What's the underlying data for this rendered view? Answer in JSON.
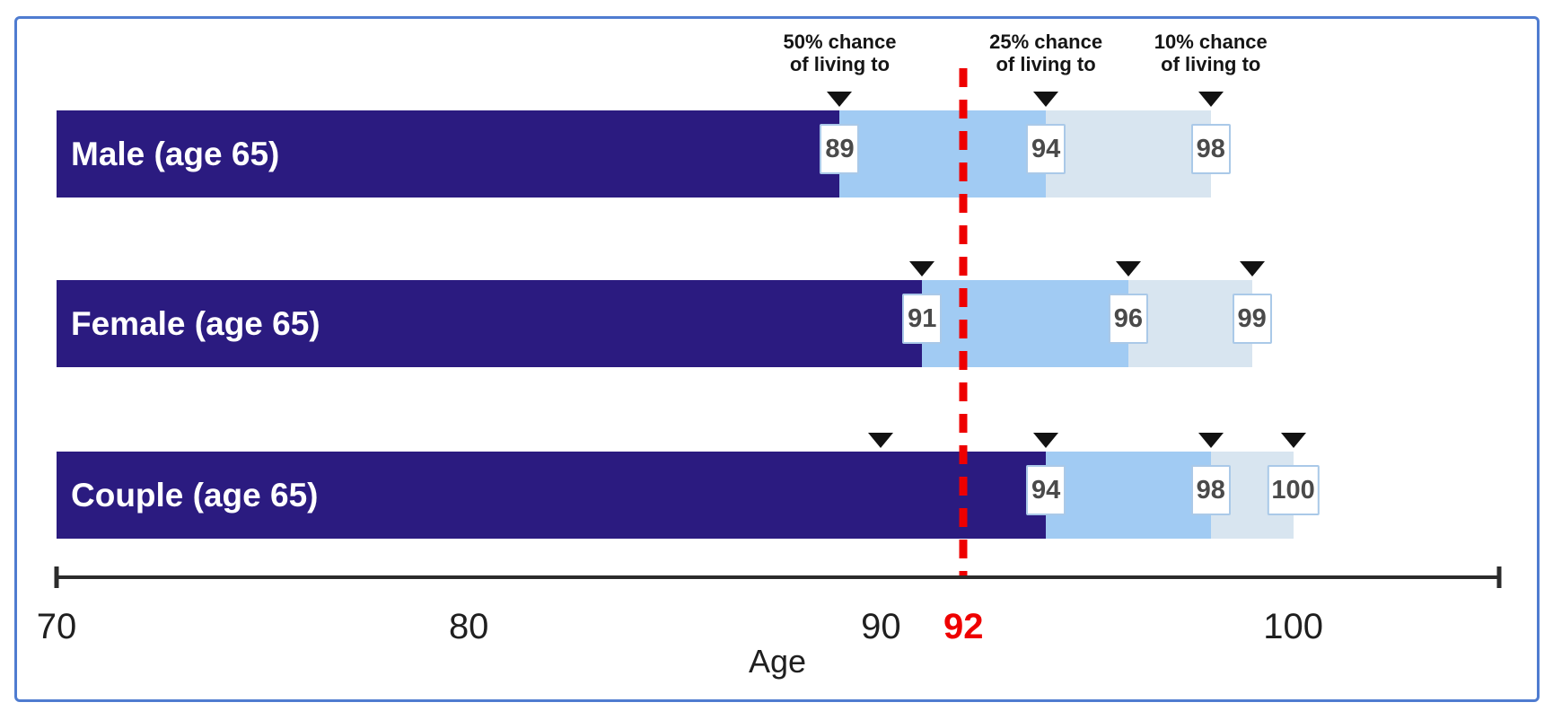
{
  "frame": {
    "border_color": "#4f7cd0"
  },
  "chart_data": {
    "type": "bar",
    "orientation": "horizontal-range",
    "title": "",
    "xlabel": "Age",
    "x_axis": {
      "min": 70,
      "max": 105,
      "tick_values": [
        70,
        80,
        90,
        100
      ],
      "tick_labels": [
        "70",
        "80",
        "90",
        "100"
      ]
    },
    "reference_line": {
      "value": 92,
      "label": "92",
      "color": "#ee0000",
      "style": "dashed"
    },
    "column_headers": [
      {
        "line1": "50% chance",
        "line2": "of living to",
        "anchor_age": 89
      },
      {
        "line1": "25% chance",
        "line2": "of living to",
        "anchor_age": 94
      },
      {
        "line1": "10% chance",
        "line2": "of living to",
        "anchor_age": 98
      }
    ],
    "categories": [
      "Male (age 65)",
      "Female (age 65)",
      "Couple (age 65)"
    ],
    "series": [
      {
        "name": "Male (age 65)",
        "start": 70,
        "p50": 89,
        "p25": 94,
        "p10": 98,
        "extra_markers": []
      },
      {
        "name": "Female (age 65)",
        "start": 70,
        "p50": 91,
        "p25": 96,
        "p10": 99,
        "extra_markers": []
      },
      {
        "name": "Couple (age 65)",
        "start": 70,
        "p50": 94,
        "p25": 98,
        "p10": 100,
        "extra_markers": [
          90
        ]
      }
    ],
    "colors": {
      "p50_segment": "#2b1b80",
      "p25_segment": "#a1cbf3",
      "p10_segment": "#d8e5f0",
      "marker": "#121212",
      "value_box_bg": "#ffffff",
      "value_box_border": "#aac9e8",
      "value_text": "#4a4a4a",
      "bar_label_text": "#ffffff",
      "axis": "#2b2b2b",
      "reference": "#ee0000"
    }
  }
}
